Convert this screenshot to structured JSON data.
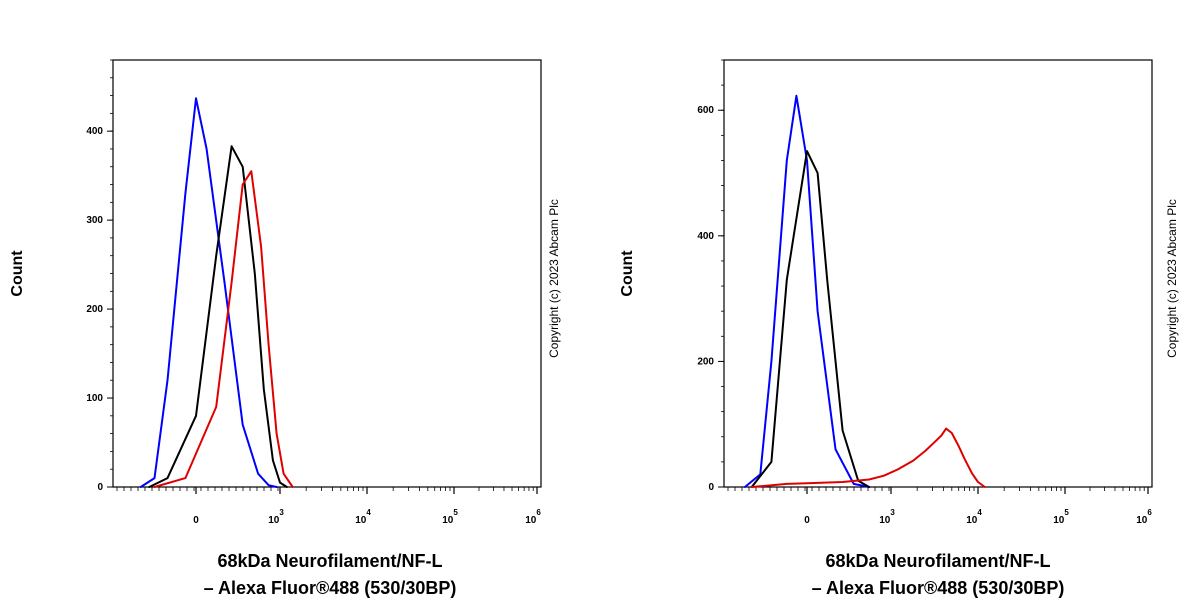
{
  "chart_data": [
    {
      "type": "line",
      "ylabel": "Count",
      "xlabel_line1": "68kDa Neurofilament/NF-L",
      "xlabel_line2": "– Alexa Fluor®488 (530/30BP)",
      "copyright": "Copyright (c) 2023 Abcam Plc",
      "ylim": [
        0,
        480
      ],
      "yticks": [
        0,
        100,
        200,
        300,
        400
      ],
      "xscale": "biexponential",
      "xticks": [
        {
          "base": "0",
          "exp": ""
        },
        {
          "base": "10",
          "exp": "3"
        },
        {
          "base": "10",
          "exp": "4"
        },
        {
          "base": "10",
          "exp": "5"
        },
        {
          "base": "10",
          "exp": "6"
        }
      ],
      "grid": false,
      "series": [
        {
          "color": "#0000ff",
          "x": [
            -400,
            -250,
            -150,
            -50,
            0,
            50,
            150,
            300,
            500,
            700,
            900
          ],
          "y": [
            0,
            10,
            120,
            330,
            437,
            380,
            230,
            70,
            15,
            2,
            0
          ]
        },
        {
          "color": "#000000",
          "x": [
            -300,
            -150,
            0,
            100,
            200,
            300,
            450,
            600,
            800,
            1000,
            1200
          ],
          "y": [
            0,
            10,
            80,
            260,
            383,
            360,
            240,
            110,
            30,
            5,
            0
          ]
        },
        {
          "color": "#e00000",
          "x": [
            -250,
            -50,
            100,
            200,
            300,
            400,
            550,
            700,
            900,
            1100,
            1400
          ],
          "y": [
            0,
            10,
            90,
            230,
            340,
            355,
            270,
            160,
            60,
            15,
            0
          ]
        }
      ]
    },
    {
      "type": "line",
      "ylabel": "Count",
      "xlabel_line1": "68kDa Neurofilament/NF-L",
      "xlabel_line2": "– Alexa Fluor®488 (530/30BP)",
      "copyright": "Copyright (c) 2023 Abcam Plc",
      "ylim": [
        0,
        680
      ],
      "yticks": [
        0,
        200,
        400,
        600
      ],
      "xscale": "biexponential",
      "xticks": [
        {
          "base": "0",
          "exp": ""
        },
        {
          "base": "10",
          "exp": "3"
        },
        {
          "base": "10",
          "exp": "4"
        },
        {
          "base": "10",
          "exp": "5"
        },
        {
          "base": "10",
          "exp": "6"
        }
      ],
      "grid": false,
      "series": [
        {
          "color": "#0000ff",
          "x": [
            -500,
            -300,
            -200,
            -100,
            -50,
            0,
            50,
            150,
            300,
            500
          ],
          "y": [
            0,
            20,
            200,
            520,
            623,
            520,
            280,
            60,
            5,
            0
          ]
        },
        {
          "color": "#000000",
          "x": [
            -400,
            -200,
            -100,
            0,
            50,
            100,
            200,
            350,
            500
          ],
          "y": [
            0,
            40,
            330,
            535,
            500,
            330,
            90,
            10,
            0
          ]
        },
        {
          "color": "#e00000",
          "x": [
            -400,
            -100,
            0,
            200,
            500,
            800,
            1200,
            1800,
            2500,
            3200,
            3800,
            4300,
            5000,
            6000,
            7000,
            8500,
            10000,
            12000
          ],
          "y": [
            0,
            5,
            6,
            8,
            12,
            18,
            28,
            42,
            58,
            72,
            82,
            93,
            86,
            65,
            45,
            22,
            8,
            0
          ]
        }
      ]
    }
  ]
}
